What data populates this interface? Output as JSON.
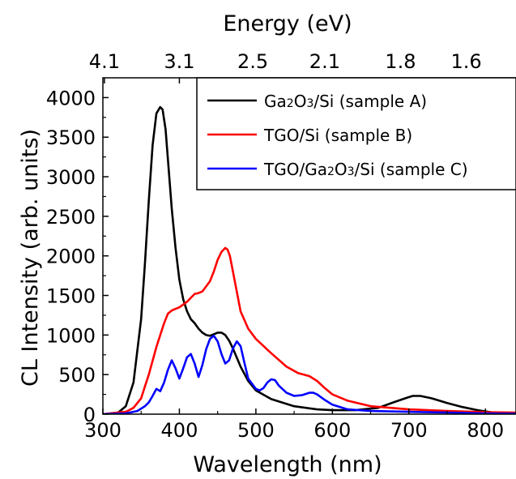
{
  "chart_data": {
    "type": "line",
    "xlabel": "Wavelength (nm)",
    "ylabel": "CL Intensity (arb. units)",
    "top_axis_label": "Energy (eV)",
    "xlim": [
      300,
      840
    ],
    "ylim": [
      0,
      4250
    ],
    "x_ticks": [
      300,
      400,
      500,
      600,
      700,
      800
    ],
    "y_ticks": [
      0,
      500,
      1000,
      1500,
      2000,
      2500,
      3000,
      3500,
      4000
    ],
    "top_ticks": [
      {
        "label": "4.1",
        "nm": 302
      },
      {
        "label": "3.1",
        "nm": 400
      },
      {
        "label": "2.5",
        "nm": 496
      },
      {
        "label": "2.1",
        "nm": 590
      },
      {
        "label": "1.8",
        "nm": 689
      },
      {
        "label": "1.6",
        "nm": 775
      }
    ],
    "legend_position": "top-right",
    "series": [
      {
        "name": "Ga2O3/Si (sample A)",
        "legend_parts": [
          [
            "Ga",
            false
          ],
          [
            "2",
            true
          ],
          [
            "O",
            false
          ],
          [
            "3",
            true
          ],
          [
            "/Si (sample A)",
            false
          ]
        ],
        "color": "#000000",
        "x": [
          300,
          320,
          330,
          340,
          350,
          355,
          360,
          365,
          370,
          375,
          378,
          382,
          386,
          390,
          395,
          400,
          405,
          410,
          415,
          420,
          425,
          430,
          435,
          440,
          445,
          450,
          455,
          460,
          465,
          470,
          480,
          490,
          500,
          520,
          550,
          580,
          600,
          630,
          660,
          680,
          695,
          705,
          715,
          730,
          750,
          770,
          790,
          810,
          840
        ],
        "y": [
          0,
          20,
          100,
          400,
          1200,
          1900,
          2700,
          3400,
          3800,
          3880,
          3850,
          3600,
          3100,
          2600,
          2100,
          1700,
          1450,
          1300,
          1200,
          1150,
          1080,
          1030,
          1000,
          990,
          1010,
          1030,
          1030,
          1000,
          930,
          830,
          600,
          420,
          300,
          190,
          100,
          60,
          50,
          50,
          80,
          150,
          200,
          230,
          230,
          200,
          140,
          90,
          50,
          20,
          10
        ]
      },
      {
        "name": "TGO/Si (sample B)",
        "legend_parts": [
          [
            "TGO/Si (sample B)",
            false
          ]
        ],
        "color": "#ff0000",
        "x": [
          300,
          330,
          340,
          350,
          355,
          360,
          370,
          380,
          385,
          390,
          395,
          400,
          410,
          420,
          425,
          430,
          440,
          445,
          450,
          455,
          460,
          463,
          466,
          470,
          475,
          480,
          490,
          500,
          520,
          540,
          555,
          570,
          580,
          590,
          600,
          620,
          650,
          700,
          750,
          800,
          840
        ],
        "y": [
          0,
          30,
          80,
          200,
          350,
          500,
          850,
          1150,
          1270,
          1310,
          1330,
          1350,
          1420,
          1520,
          1530,
          1550,
          1680,
          1800,
          1950,
          2050,
          2100,
          2080,
          2000,
          1800,
          1550,
          1300,
          1080,
          950,
          770,
          600,
          520,
          480,
          420,
          330,
          250,
          170,
          100,
          60,
          40,
          25,
          20
        ]
      },
      {
        "name": "TGO/Ga2O3/Si (sample C)",
        "legend_parts": [
          [
            "TGO/Ga",
            false
          ],
          [
            "2",
            true
          ],
          [
            "O",
            false
          ],
          [
            "3",
            true
          ],
          [
            "/Si (sample C)",
            false
          ]
        ],
        "color": "#0000ff",
        "x": [
          300,
          330,
          345,
          355,
          360,
          365,
          370,
          375,
          380,
          385,
          390,
          395,
          400,
          405,
          410,
          415,
          420,
          425,
          430,
          435,
          440,
          445,
          450,
          455,
          460,
          465,
          470,
          475,
          480,
          485,
          490,
          500,
          505,
          510,
          515,
          520,
          525,
          530,
          540,
          550,
          560,
          570,
          575,
          580,
          590,
          600,
          620,
          650,
          700,
          750,
          800,
          840
        ],
        "y": [
          0,
          10,
          40,
          100,
          150,
          230,
          320,
          290,
          400,
          560,
          680,
          580,
          450,
          580,
          720,
          760,
          640,
          470,
          620,
          820,
          950,
          990,
          920,
          760,
          640,
          680,
          830,
          920,
          860,
          650,
          450,
          320,
          300,
          330,
          400,
          440,
          430,
          360,
          270,
          230,
          240,
          270,
          270,
          250,
          180,
          120,
          60,
          40,
          30,
          20,
          10,
          5
        ]
      }
    ]
  }
}
